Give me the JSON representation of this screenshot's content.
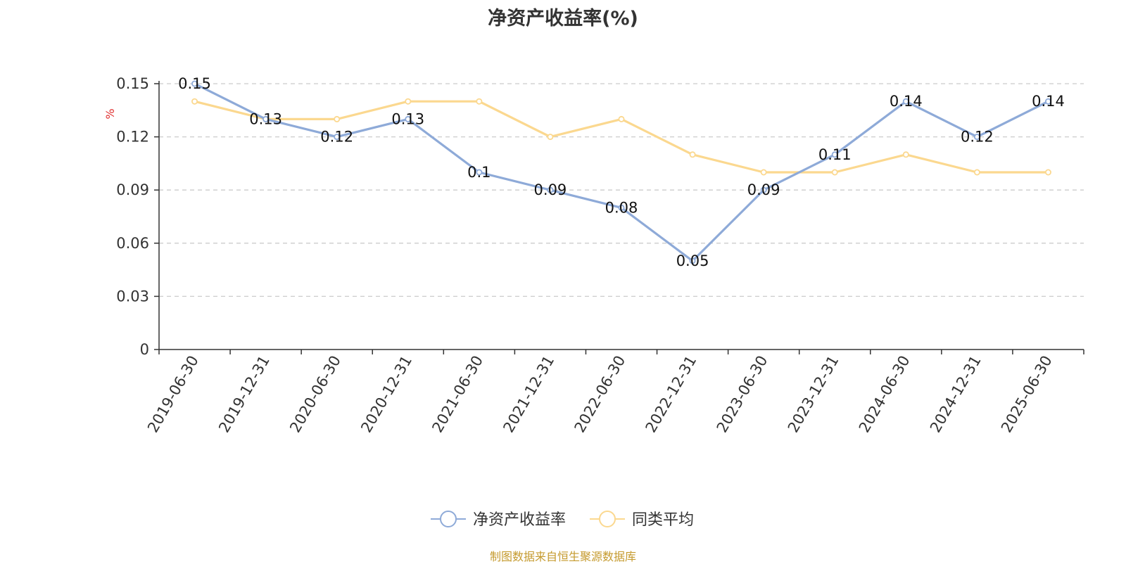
{
  "title": "净资产收益率(%)",
  "source": "制图数据来自恒生聚源数据库",
  "chart_data": {
    "type": "line",
    "title": "净资产收益率(%)",
    "ylabel": "%",
    "xlabel": "",
    "categories": [
      "2019-06-30",
      "2019-12-31",
      "2020-06-30",
      "2020-12-31",
      "2021-06-30",
      "2021-12-31",
      "2022-06-30",
      "2022-12-31",
      "2023-06-30",
      "2023-12-31",
      "2024-06-30",
      "2024-12-31",
      "2025-06-30"
    ],
    "ylim": [
      0,
      0.15
    ],
    "yticks": [
      "0",
      "0.03",
      "0.06",
      "0.09",
      "0.12",
      "0.15"
    ],
    "ytick_values": [
      0,
      0.03,
      0.06,
      0.09,
      0.12,
      0.15
    ],
    "grid": true,
    "legend_position": "bottom-center",
    "series": [
      {
        "name": "净资产收益率",
        "color": "#8eaad8",
        "values": [
          0.15,
          0.13,
          0.12,
          0.13,
          0.1,
          0.09,
          0.08,
          0.05,
          0.09,
          0.11,
          0.14,
          0.12,
          0.14
        ],
        "labels": [
          "0.15",
          "0.13",
          "0.12",
          "0.13",
          "0.1",
          "0.09",
          "0.08",
          "0.05",
          "0.09",
          "0.11",
          "0.14",
          "0.12",
          "0.14"
        ]
      },
      {
        "name": "同类平均",
        "color": "#fbd88f",
        "values": [
          0.14,
          0.13,
          0.13,
          0.14,
          0.14,
          0.12,
          0.13,
          0.11,
          0.1,
          0.1,
          0.11,
          0.1,
          0.1
        ]
      }
    ]
  }
}
